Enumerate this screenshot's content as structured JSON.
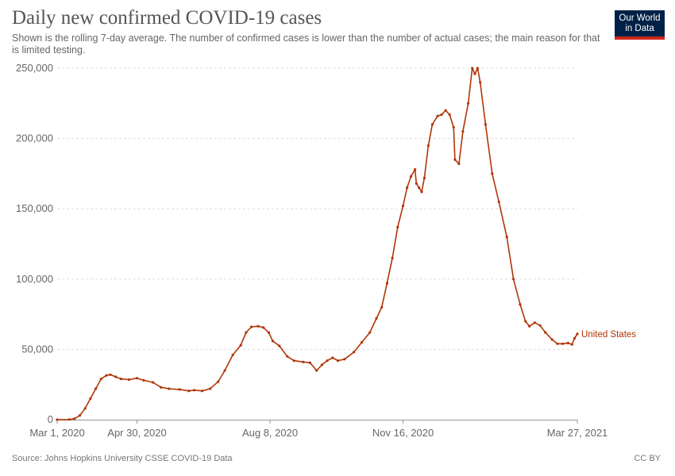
{
  "header": {
    "title": "Daily new confirmed COVID-19 cases",
    "subtitle": "Shown is the rolling 7-day average. The number of confirmed cases is lower than the number of actual cases; the main reason for that is limited testing."
  },
  "logo": {
    "line1": "Our World",
    "line2": "in Data"
  },
  "footer": {
    "source": "Source: Johns Hopkins University CSSE COVID-19 Data",
    "license": "CC BY"
  },
  "colors": {
    "series": "#b13507",
    "grid": "#dddddd",
    "axis": "#999999"
  },
  "chart_data": {
    "type": "line",
    "title": "Daily new confirmed COVID-19 cases",
    "xlabel": "",
    "ylabel": "",
    "xlim": [
      "2020-03-01",
      "2021-03-27"
    ],
    "ylim": [
      0,
      250000
    ],
    "grid": true,
    "y_ticks": [
      {
        "value": 0,
        "label": "0"
      },
      {
        "value": 50000,
        "label": "50,000"
      },
      {
        "value": 100000,
        "label": "100,000"
      },
      {
        "value": 150000,
        "label": "150,000"
      },
      {
        "value": 200000,
        "label": "200,000"
      },
      {
        "value": 250000,
        "label": "250,000"
      }
    ],
    "x_ticks": [
      {
        "date": "2020-03-01",
        "label": "Mar 1, 2020"
      },
      {
        "date": "2020-04-30",
        "label": "Apr 30, 2020"
      },
      {
        "date": "2020-08-08",
        "label": "Aug 8, 2020"
      },
      {
        "date": "2020-11-16",
        "label": "Nov 16, 2020"
      },
      {
        "date": "2021-03-27",
        "label": "Mar 27, 2021"
      }
    ],
    "series": [
      {
        "name": "United States",
        "points": [
          [
            "2020-03-01",
            0
          ],
          [
            "2020-03-10",
            100
          ],
          [
            "2020-03-14",
            700
          ],
          [
            "2020-03-18",
            3000
          ],
          [
            "2020-03-22",
            8000
          ],
          [
            "2020-03-26",
            15000
          ],
          [
            "2020-03-30",
            22000
          ],
          [
            "2020-04-03",
            29000
          ],
          [
            "2020-04-07",
            31500
          ],
          [
            "2020-04-10",
            32000
          ],
          [
            "2020-04-14",
            30500
          ],
          [
            "2020-04-18",
            29000
          ],
          [
            "2020-04-24",
            28500
          ],
          [
            "2020-04-30",
            29500
          ],
          [
            "2020-05-05",
            28000
          ],
          [
            "2020-05-12",
            26500
          ],
          [
            "2020-05-18",
            23000
          ],
          [
            "2020-05-24",
            22000
          ],
          [
            "2020-06-01",
            21500
          ],
          [
            "2020-06-08",
            20500
          ],
          [
            "2020-06-12",
            21000
          ],
          [
            "2020-06-18",
            20500
          ],
          [
            "2020-06-24",
            22000
          ],
          [
            "2020-06-30",
            27000
          ],
          [
            "2020-07-05",
            35000
          ],
          [
            "2020-07-11",
            46000
          ],
          [
            "2020-07-17",
            53000
          ],
          [
            "2020-07-21",
            62000
          ],
          [
            "2020-07-25",
            66000
          ],
          [
            "2020-07-30",
            66500
          ],
          [
            "2020-08-03",
            65500
          ],
          [
            "2020-08-07",
            62000
          ],
          [
            "2020-08-10",
            56000
          ],
          [
            "2020-08-15",
            52500
          ],
          [
            "2020-08-21",
            45000
          ],
          [
            "2020-08-26",
            42000
          ],
          [
            "2020-09-02",
            41000
          ],
          [
            "2020-09-07",
            40500
          ],
          [
            "2020-09-12",
            35000
          ],
          [
            "2020-09-16",
            39000
          ],
          [
            "2020-09-20",
            42000
          ],
          [
            "2020-09-24",
            44000
          ],
          [
            "2020-09-28",
            42000
          ],
          [
            "2020-10-03",
            43000
          ],
          [
            "2020-10-10",
            48000
          ],
          [
            "2020-10-16",
            55000
          ],
          [
            "2020-10-22",
            62000
          ],
          [
            "2020-10-27",
            72000
          ],
          [
            "2020-10-31",
            80000
          ],
          [
            "2020-11-04",
            97000
          ],
          [
            "2020-11-08",
            115000
          ],
          [
            "2020-11-12",
            137000
          ],
          [
            "2020-11-16",
            152000
          ],
          [
            "2020-11-19",
            165000
          ],
          [
            "2020-11-22",
            173000
          ],
          [
            "2020-11-25",
            178000
          ],
          [
            "2020-11-26",
            168000
          ],
          [
            "2020-11-28",
            165000
          ],
          [
            "2020-11-30",
            162000
          ],
          [
            "2020-12-02",
            172000
          ],
          [
            "2020-12-05",
            195000
          ],
          [
            "2020-12-08",
            210000
          ],
          [
            "2020-12-12",
            216000
          ],
          [
            "2020-12-15",
            217000
          ],
          [
            "2020-12-18",
            220000
          ],
          [
            "2020-12-21",
            217000
          ],
          [
            "2020-12-24",
            208000
          ],
          [
            "2020-12-25",
            185000
          ],
          [
            "2020-12-28",
            182000
          ],
          [
            "2020-12-31",
            205000
          ],
          [
            "2021-01-04",
            225000
          ],
          [
            "2021-01-07",
            250000
          ],
          [
            "2021-01-09",
            246000
          ],
          [
            "2021-01-11",
            250000
          ],
          [
            "2021-01-13",
            240000
          ],
          [
            "2021-01-17",
            210000
          ],
          [
            "2021-01-22",
            175000
          ],
          [
            "2021-01-27",
            155000
          ],
          [
            "2021-02-02",
            130000
          ],
          [
            "2021-02-07",
            100000
          ],
          [
            "2021-02-12",
            82000
          ],
          [
            "2021-02-16",
            70000
          ],
          [
            "2021-02-19",
            66500
          ],
          [
            "2021-02-23",
            69000
          ],
          [
            "2021-02-27",
            67000
          ],
          [
            "2021-03-03",
            62000
          ],
          [
            "2021-03-08",
            57000
          ],
          [
            "2021-03-12",
            54000
          ],
          [
            "2021-03-16",
            54000
          ],
          [
            "2021-03-20",
            54500
          ],
          [
            "2021-03-23",
            53500
          ],
          [
            "2021-03-25",
            58000
          ],
          [
            "2021-03-27",
            61000
          ]
        ]
      }
    ]
  }
}
